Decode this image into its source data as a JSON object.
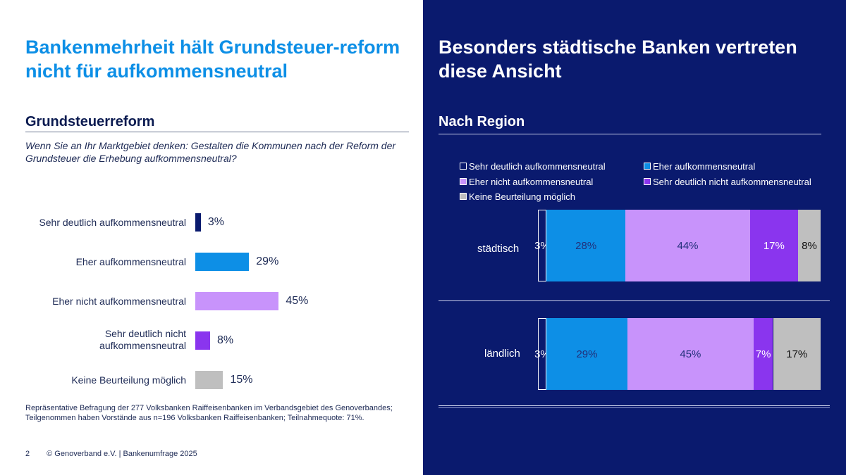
{
  "left": {
    "title": "Bankenmehrheit hält Grundsteuer-reform nicht für aufkommensneutral",
    "subtitle": "Grundsteuerreform",
    "question": "Wenn Sie an Ihr Marktgebiet denken: Gestalten die Kommunen nach der Reform der Grundsteuer die Erhebung aufkommensneutral?",
    "footnote": "Repräsentative Befragung der 277 Volksbanken Raiffeisenbanken im Verbandsgebiet des Genoverbandes; Teilgenommen haben Vorstände aus n=196 Volksbanken Raiffeisenbanken; Teilnahmequote: 71%.",
    "page_number": "2",
    "footer_text": "© Genoverband e.V. | Bankenumfrage 2025"
  },
  "right": {
    "title": "Besonders städtische Banken vertreten diese Ansicht",
    "subtitle": "Nach Region"
  },
  "chart_data": [
    {
      "type": "bar",
      "orientation": "horizontal",
      "categories": [
        "Sehr deutlich aufkommensneutral",
        "Eher aufkommensneutral",
        "Eher nicht aufkommensneutral",
        "Sehr deutlich nicht aufkommensneutral",
        "Keine Beurteilung möglich"
      ],
      "values": [
        3,
        29,
        45,
        8,
        15
      ],
      "value_labels": [
        "3%",
        "29%",
        "45%",
        "8%",
        "15%"
      ],
      "colors": [
        "#0a1a6e",
        "#0d8fe6",
        "#c893fb",
        "#8a35ee",
        "#bfbfbf"
      ],
      "unit": "%"
    },
    {
      "type": "bar",
      "orientation": "horizontal",
      "stacked": true,
      "legend_position": "top",
      "categories": [
        "städtisch",
        "ländlich"
      ],
      "series": [
        {
          "name": "Sehr deutlich aufkommensneutral",
          "color": "#0a1a6e",
          "values": [
            3,
            3
          ],
          "labels": [
            "3%",
            "3%"
          ]
        },
        {
          "name": "Eher aufkommensneutral",
          "color": "#0d8fe6",
          "values": [
            28,
            29
          ],
          "labels": [
            "28%",
            "29%"
          ]
        },
        {
          "name": "Eher nicht aufkommensneutral",
          "color": "#c893fb",
          "values": [
            44,
            45
          ],
          "labels": [
            "44%",
            "45%"
          ]
        },
        {
          "name": "Sehr deutlich nicht aufkommensneutral",
          "color": "#8a35ee",
          "values": [
            17,
            7
          ],
          "labels": [
            "17%",
            "7%"
          ]
        },
        {
          "name": "Keine Beurteilung möglich",
          "color": "#bfbfbf",
          "values": [
            8,
            17
          ],
          "labels": [
            "8%",
            "17%"
          ]
        }
      ]
    }
  ]
}
